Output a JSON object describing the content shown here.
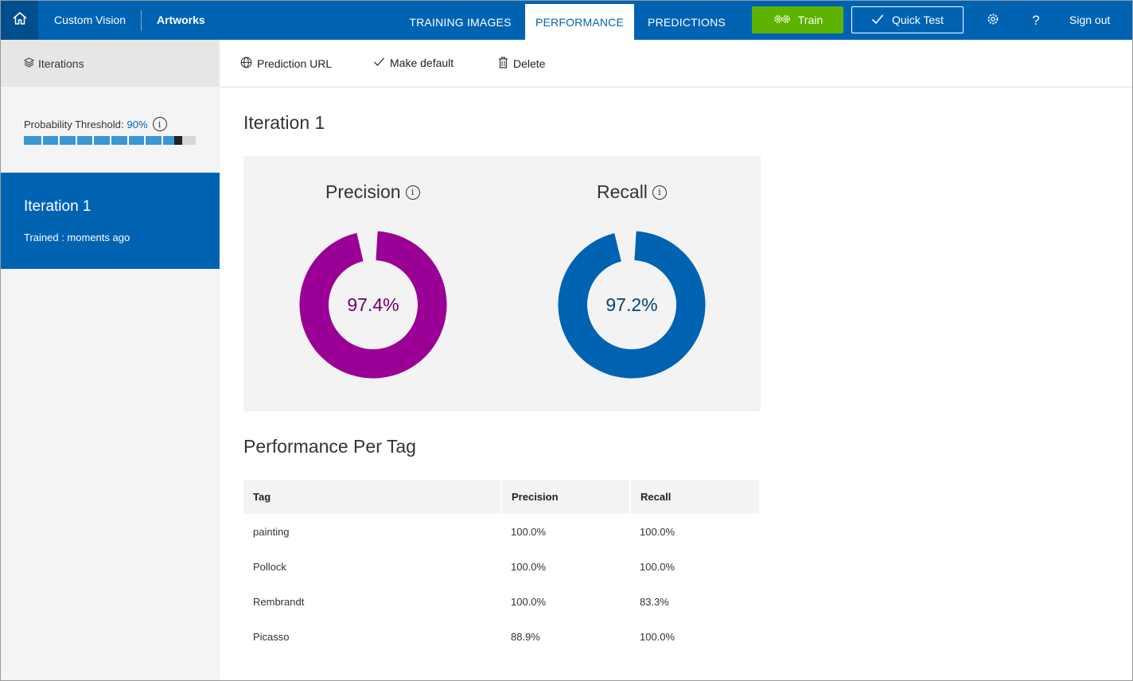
{
  "topbar": {
    "brand": "Custom Vision",
    "project": "Artworks",
    "tabs": {
      "training": "TRAINING IMAGES",
      "performance": "PERFORMANCE",
      "predictions": "PREDICTIONS"
    },
    "train_label": "Train",
    "quick_test_label": "Quick Test",
    "help_label": "?",
    "sign_out": "Sign out",
    "colors": {
      "bar": "#0063b1",
      "home": "#004e8c",
      "train": "#5db300"
    }
  },
  "sidebar": {
    "header": "Iterations",
    "threshold_label": "Probability Threshold:",
    "threshold_value": "90%",
    "threshold_fraction": 0.9,
    "iteration": {
      "name": "Iteration 1",
      "trained": "Trained : moments ago"
    }
  },
  "toolbar": {
    "prediction_url": "Prediction URL",
    "make_default": "Make default",
    "delete": "Delete"
  },
  "main": {
    "title": "Iteration 1",
    "precision": {
      "label": "Precision",
      "value_text": "97.4%",
      "value": 97.4,
      "color": "#9b0096",
      "text_color": "#6b0066"
    },
    "recall": {
      "label": "Recall",
      "value_text": "97.2%",
      "value": 97.2,
      "color": "#0063b1",
      "text_color": "#004578"
    },
    "per_tag_title": "Performance Per Tag",
    "table": {
      "headers": [
        "Tag",
        "Precision",
        "Recall"
      ],
      "rows": [
        [
          "painting",
          "100.0%",
          "100.0%"
        ],
        [
          "Pollock",
          "100.0%",
          "100.0%"
        ],
        [
          "Rembrandt",
          "100.0%",
          "83.3%"
        ],
        [
          "Picasso",
          "88.9%",
          "100.0%"
        ]
      ]
    }
  }
}
